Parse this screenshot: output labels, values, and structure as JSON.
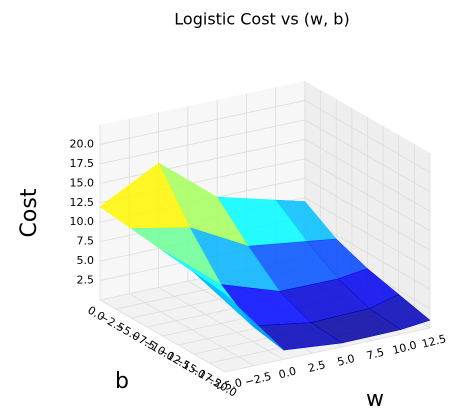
{
  "chart_data": {
    "type": "surface3d",
    "title": "Logistic Cost vs (w, b)",
    "xlabel": "w",
    "ylabel": "b",
    "zlabel": "Cost",
    "x": [
      -5,
      0,
      5,
      10,
      12.5
    ],
    "y": [
      0,
      -5,
      -10,
      -15,
      -20
    ],
    "z": [
      [
        12.0,
        16.0,
        10.0,
        8.0,
        7.0
      ],
      [
        11.5,
        10.0,
        6.0,
        5.0,
        4.5
      ],
      [
        11.0,
        5.0,
        2.5,
        2.5,
        3.0
      ],
      [
        10.5,
        2.0,
        0.8,
        1.0,
        2.0
      ],
      [
        10.0,
        1.2,
        0.5,
        0.6,
        1.0
      ]
    ],
    "xlim": [
      -5,
      12.5
    ],
    "ylim": [
      -20,
      0
    ],
    "zlim": [
      0,
      22.5
    ],
    "xticks": [
      {
        "value": -5,
        "label": "−5.0"
      },
      {
        "value": -2.5,
        "label": "−2.5"
      },
      {
        "value": 0,
        "label": "0.0"
      },
      2.5,
      {
        "value": 5,
        "label": "5.0"
      },
      7.5,
      {
        "value": 10,
        "label": "10.0"
      },
      12.5
    ],
    "yticks": [
      {
        "value": 0,
        "label": "0.0"
      },
      {
        "value": -2.5,
        "label": "−2.5"
      },
      {
        "value": -5,
        "label": "−5.0"
      },
      {
        "value": -7.5,
        "label": "−7.5"
      },
      {
        "value": -10,
        "label": "−10.0"
      },
      {
        "value": -12.5,
        "label": "−12.5"
      },
      {
        "value": -15,
        "label": "−15.0"
      },
      {
        "value": -17.5,
        "label": "−17.5"
      },
      {
        "value": -20,
        "label": "−20.0"
      }
    ],
    "zticks": [
      2.5,
      {
        "value": 5,
        "label": "5.0"
      },
      7.5,
      {
        "value": 10,
        "label": "10.0"
      },
      12.5,
      {
        "value": 15,
        "label": "15.0"
      },
      17.5,
      {
        "value": 20,
        "label": "20.0"
      }
    ],
    "colormap": "jet",
    "grid": true
  }
}
